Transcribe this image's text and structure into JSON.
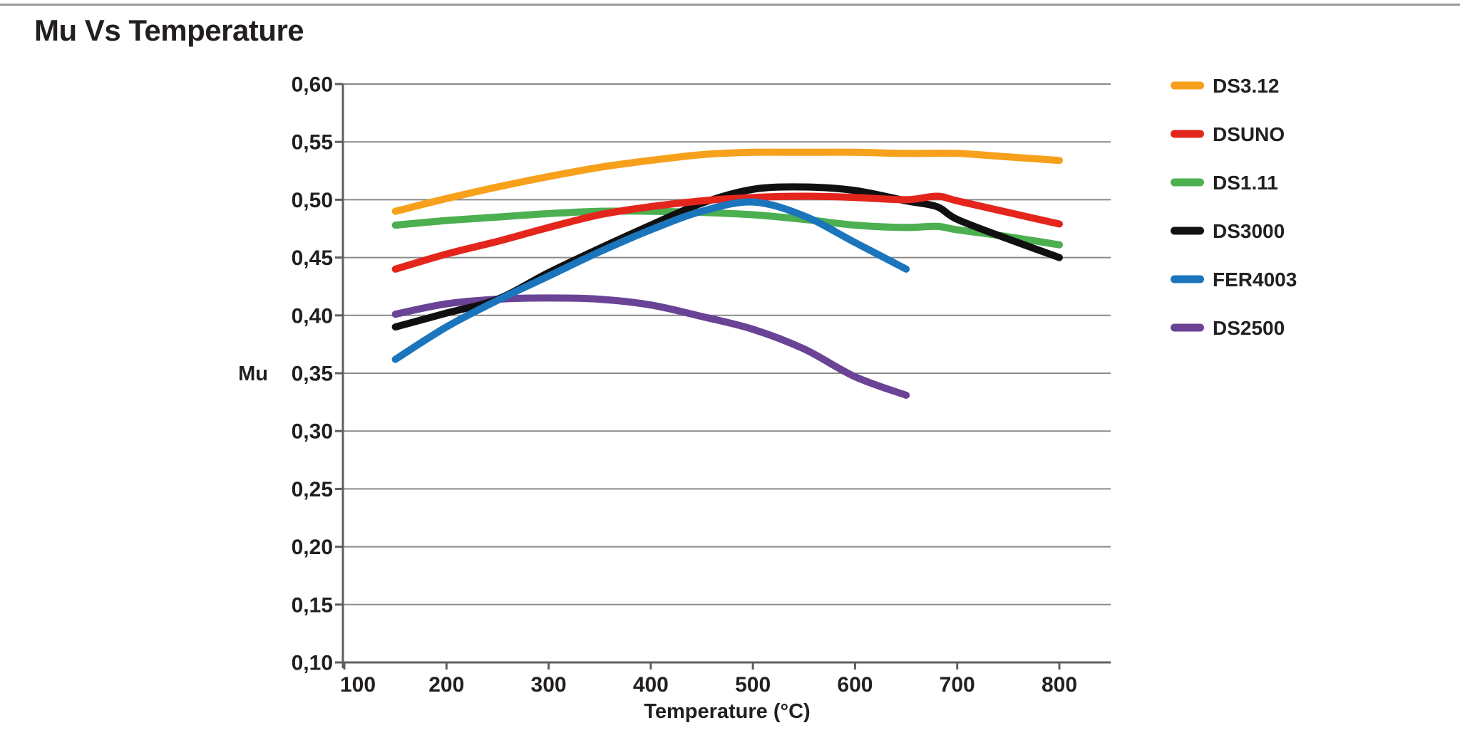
{
  "page": {
    "background": "#ffffff",
    "top_border_color": "#9a9a9a",
    "text_color": "#231f20"
  },
  "chart_data": {
    "type": "line",
    "title": "Mu Vs Temperature",
    "xlabel": "Temperature (°C)",
    "ylabel": "Mu",
    "xlim": [
      100,
      850
    ],
    "ylim": [
      0.1,
      0.6
    ],
    "grid": "horizontal",
    "legend_position": "right",
    "x_ticks": [
      100,
      200,
      300,
      400,
      500,
      600,
      700,
      800
    ],
    "x_tick_labels": [
      "100",
      "200",
      "300",
      "400",
      "500",
      "600",
      "700",
      "800"
    ],
    "y_ticks": [
      0.6,
      0.55,
      0.5,
      0.45,
      0.4,
      0.35,
      0.3,
      0.25,
      0.2,
      0.15,
      0.1
    ],
    "y_tick_labels": [
      "0,60",
      "0,55",
      "0,50",
      "0,45",
      "0,40",
      "0,35",
      "0,30",
      "0,25",
      "0,20",
      "0,15",
      "0,10"
    ],
    "colors": {
      "grid": "#8a8a8a",
      "axis": "#5f5f5f",
      "text": "#231f20"
    },
    "series": [
      {
        "name": "DS3.12",
        "color": "#F7A01B",
        "x": [
          150,
          200,
          250,
          300,
          350,
          400,
          450,
          500,
          550,
          600,
          650,
          700,
          750,
          800
        ],
        "y": [
          0.49,
          0.501,
          0.511,
          0.52,
          0.528,
          0.534,
          0.539,
          0.541,
          0.541,
          0.541,
          0.54,
          0.54,
          0.537,
          0.534
        ]
      },
      {
        "name": "DSUNO",
        "color": "#E3251C",
        "x": [
          150,
          200,
          250,
          300,
          350,
          400,
          450,
          500,
          550,
          600,
          650,
          680,
          700,
          750,
          800
        ],
        "y": [
          0.44,
          0.453,
          0.464,
          0.476,
          0.487,
          0.494,
          0.499,
          0.502,
          0.503,
          0.502,
          0.5,
          0.503,
          0.499,
          0.489,
          0.479
        ]
      },
      {
        "name": "DS1.11",
        "color": "#4CAF50",
        "x": [
          150,
          200,
          250,
          300,
          350,
          400,
          450,
          500,
          550,
          600,
          650,
          680,
          700,
          750,
          800
        ],
        "y": [
          0.478,
          0.482,
          0.485,
          0.488,
          0.49,
          0.49,
          0.489,
          0.487,
          0.483,
          0.478,
          0.476,
          0.477,
          0.474,
          0.468,
          0.461
        ]
      },
      {
        "name": "DS3000",
        "color": "#101010",
        "x": [
          150,
          200,
          250,
          300,
          350,
          400,
          450,
          500,
          550,
          600,
          650,
          680,
          700,
          750,
          800
        ],
        "y": [
          0.39,
          0.402,
          0.414,
          0.437,
          0.458,
          0.478,
          0.497,
          0.509,
          0.511,
          0.508,
          0.499,
          0.494,
          0.483,
          0.466,
          0.45
        ]
      },
      {
        "name": "FER4003",
        "color": "#1B75BC",
        "x": [
          150,
          200,
          250,
          300,
          350,
          400,
          450,
          500,
          550,
          600,
          650
        ],
        "y": [
          0.362,
          0.39,
          0.413,
          0.434,
          0.455,
          0.474,
          0.49,
          0.498,
          0.486,
          0.463,
          0.44
        ]
      },
      {
        "name": "DS2500",
        "color": "#6A4396",
        "x": [
          150,
          200,
          250,
          300,
          350,
          400,
          450,
          500,
          550,
          600,
          650
        ],
        "y": [
          0.401,
          0.41,
          0.414,
          0.415,
          0.414,
          0.409,
          0.399,
          0.388,
          0.371,
          0.347,
          0.331
        ]
      }
    ]
  }
}
